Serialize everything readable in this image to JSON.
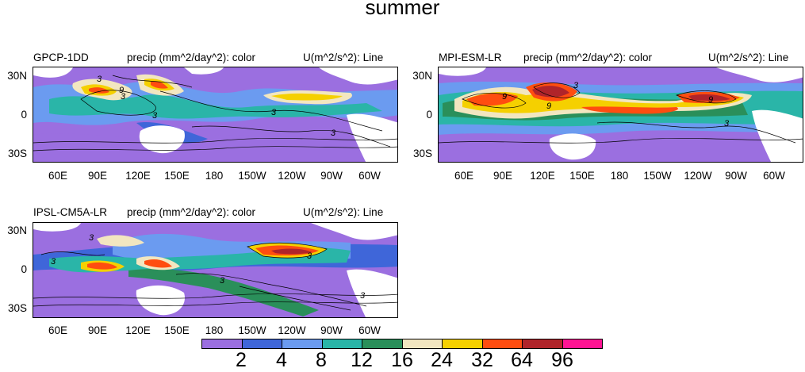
{
  "title": "summer",
  "panels": [
    {
      "model": "GPCP-1DD",
      "field": "precip (mm^2/day^2): color",
      "contour": "U(m^2/s^2): Line",
      "contour_labels": [
        "3",
        "3",
        "9",
        "3",
        "3",
        "3"
      ]
    },
    {
      "model": "MPI-ESM-LR",
      "field": "precip (mm^2/day^2): color",
      "contour": "U(m^2/s^2): Line",
      "contour_labels": [
        "9",
        "9",
        "3",
        "9",
        "3"
      ]
    },
    {
      "model": "IPSL-CM5A-LR",
      "field": "precip (mm^2/day^2): color",
      "contour": "U(m^2/s^2): Line",
      "contour_labels": [
        "3",
        "3",
        "3",
        "3",
        "3"
      ]
    }
  ],
  "lat_labels": [
    "30N",
    "0",
    "30S"
  ],
  "lon_labels": [
    "60E",
    "90E",
    "120E",
    "150E",
    "180",
    "150W",
    "120W",
    "90W",
    "60W"
  ],
  "colorbar": {
    "colors": [
      "#9b6fe0",
      "#3f66d9",
      "#6b9bf0",
      "#2ab5a8",
      "#2a8f5a",
      "#f2e6c0",
      "#f5d000",
      "#ff4d10",
      "#b0242a",
      "#ff1493"
    ],
    "labels": [
      "2",
      "4",
      "8",
      "12",
      "16",
      "24",
      "32",
      "64",
      "96"
    ]
  }
}
